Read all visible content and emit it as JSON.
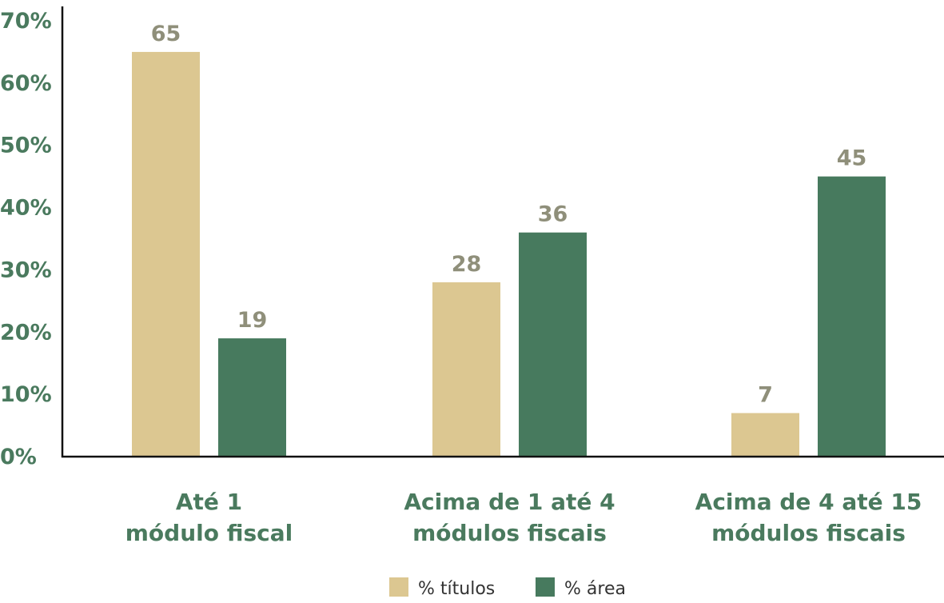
{
  "chart_data": {
    "type": "bar",
    "title": "",
    "xlabel": "",
    "ylabel": "",
    "categories": [
      [
        "Até 1",
        "módulo fiscal"
      ],
      [
        "Acima de 1 até 4",
        "módulos fiscais"
      ],
      [
        "Acima de 4 até 15",
        "módulos fiscais"
      ]
    ],
    "series": [
      {
        "name": "% títulos",
        "color": "#dcc791",
        "values": [
          65,
          28,
          7
        ]
      },
      {
        "name": "% área",
        "color": "#477a5e",
        "values": [
          19,
          36,
          45
        ]
      }
    ],
    "y_ticks": [
      {
        "value": 0,
        "label": "0%"
      },
      {
        "value": 10,
        "label": "10%"
      },
      {
        "value": 20,
        "label": "20%"
      },
      {
        "value": 30,
        "label": "30%"
      },
      {
        "value": 40,
        "label": "40%"
      },
      {
        "value": 50,
        "label": "50%"
      },
      {
        "value": 60,
        "label": "60%"
      },
      {
        "value": 70,
        "label": "70%"
      }
    ],
    "ylim": [
      0,
      70
    ],
    "grid": false,
    "legend_position": "bottom-center",
    "axis_color": "#111111",
    "tick_label_color": "#4a7a5e",
    "data_label_color": "#8f8f7a"
  }
}
